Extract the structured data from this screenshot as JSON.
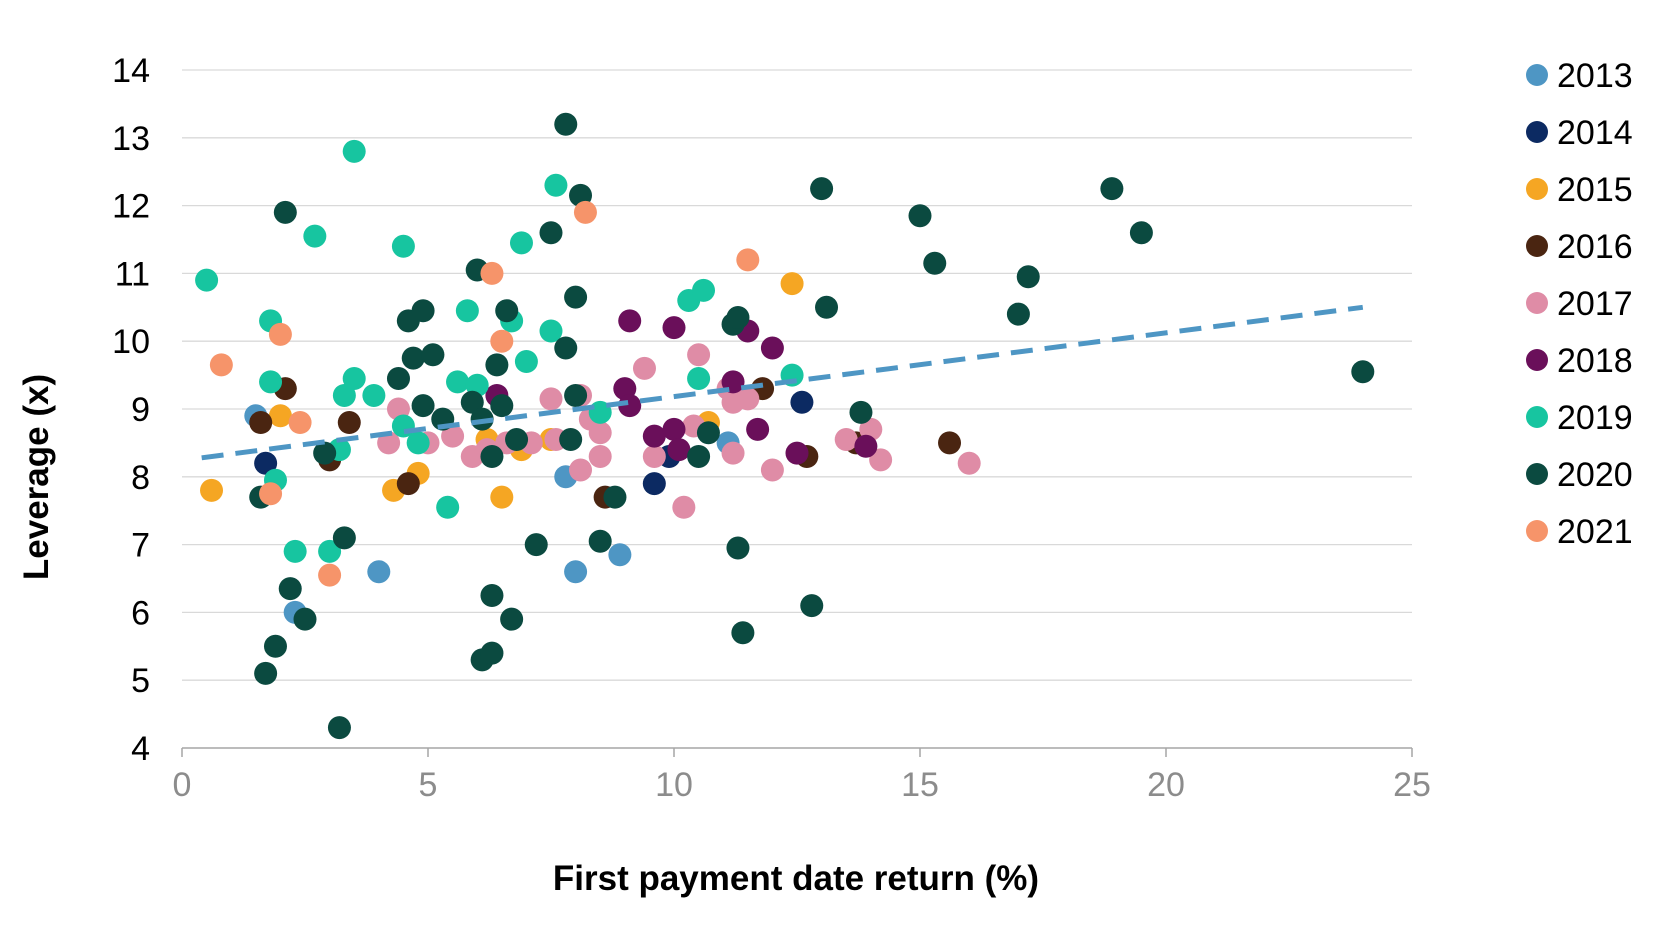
{
  "chart_data": {
    "type": "scatter",
    "xlabel": "First payment date return (%)",
    "ylabel": "Leverage (x)",
    "xlim": [
      0,
      25
    ],
    "ylim": [
      4,
      14
    ],
    "x_ticks": [
      "0",
      "5",
      "10",
      "15",
      "20",
      "25"
    ],
    "y_ticks": [
      "4",
      "5",
      "6",
      "7",
      "8",
      "9",
      "10",
      "11",
      "12",
      "13",
      "14"
    ],
    "grid": "horizontal",
    "legend_position": "right",
    "trendline": {
      "style": "dashed",
      "color": "#4e96c4",
      "x": [
        0.4,
        24.0
      ],
      "y": [
        8.28,
        10.5
      ]
    },
    "series": [
      {
        "name": "2013",
        "color": "#4e96c4",
        "points": [
          [
            1.5,
            8.9
          ],
          [
            2.3,
            6.0
          ],
          [
            4.0,
            6.6
          ],
          [
            7.8,
            8.0
          ],
          [
            8.0,
            6.6
          ],
          [
            8.9,
            6.85
          ],
          [
            11.1,
            8.5
          ]
        ]
      },
      {
        "name": "2014",
        "color": "#0c2a62",
        "points": [
          [
            1.7,
            8.2
          ],
          [
            9.6,
            7.9
          ],
          [
            9.9,
            8.3
          ],
          [
            12.6,
            9.1
          ]
        ]
      },
      {
        "name": "2015",
        "color": "#f5a623",
        "points": [
          [
            0.6,
            7.8
          ],
          [
            2.0,
            8.9
          ],
          [
            4.3,
            7.8
          ],
          [
            4.8,
            8.05
          ],
          [
            6.2,
            8.55
          ],
          [
            6.5,
            7.7
          ],
          [
            6.9,
            8.4
          ],
          [
            7.5,
            8.55
          ],
          [
            10.7,
            8.8
          ],
          [
            12.4,
            10.85
          ]
        ]
      },
      {
        "name": "2016",
        "color": "#4a2511",
        "points": [
          [
            1.6,
            8.8
          ],
          [
            2.1,
            9.3
          ],
          [
            3.0,
            8.25
          ],
          [
            3.4,
            8.8
          ],
          [
            4.6,
            7.9
          ],
          [
            8.6,
            7.7
          ],
          [
            11.8,
            9.3
          ],
          [
            12.7,
            8.3
          ],
          [
            13.7,
            8.5
          ],
          [
            15.6,
            8.5
          ]
        ]
      },
      {
        "name": "2017",
        "color": "#df8ca6",
        "points": [
          [
            4.2,
            8.5
          ],
          [
            4.4,
            9.0
          ],
          [
            5.0,
            8.5
          ],
          [
            5.5,
            8.6
          ],
          [
            5.9,
            8.3
          ],
          [
            6.2,
            8.4
          ],
          [
            6.6,
            8.5
          ],
          [
            7.1,
            8.5
          ],
          [
            7.5,
            9.15
          ],
          [
            7.6,
            8.55
          ],
          [
            8.1,
            9.2
          ],
          [
            8.1,
            8.1
          ],
          [
            8.3,
            8.85
          ],
          [
            8.5,
            8.65
          ],
          [
            8.5,
            8.3
          ],
          [
            9.4,
            9.6
          ],
          [
            9.6,
            8.3
          ],
          [
            10.2,
            7.55
          ],
          [
            10.4,
            8.75
          ],
          [
            10.5,
            9.8
          ],
          [
            11.1,
            9.3
          ],
          [
            11.2,
            9.1
          ],
          [
            11.2,
            8.35
          ],
          [
            11.5,
            9.15
          ],
          [
            12.0,
            8.1
          ],
          [
            13.5,
            8.55
          ],
          [
            14.0,
            8.7
          ],
          [
            14.2,
            8.25
          ],
          [
            16.0,
            8.2
          ]
        ]
      },
      {
        "name": "2018",
        "color": "#6a0f5a",
        "points": [
          [
            6.4,
            9.2
          ],
          [
            9.0,
            9.3
          ],
          [
            9.1,
            9.05
          ],
          [
            9.1,
            10.3
          ],
          [
            9.6,
            8.6
          ],
          [
            10.0,
            8.7
          ],
          [
            10.0,
            10.2
          ],
          [
            10.1,
            8.4
          ],
          [
            11.2,
            9.4
          ],
          [
            11.5,
            10.15
          ],
          [
            11.7,
            8.7
          ],
          [
            12.0,
            9.9
          ],
          [
            12.5,
            8.35
          ],
          [
            13.9,
            8.45
          ]
        ]
      },
      {
        "name": "2019",
        "color": "#17c5a0",
        "points": [
          [
            0.5,
            10.9
          ],
          [
            1.8,
            10.3
          ],
          [
            1.8,
            9.4
          ],
          [
            1.9,
            7.95
          ],
          [
            2.3,
            6.9
          ],
          [
            2.7,
            11.55
          ],
          [
            3.0,
            6.9
          ],
          [
            3.2,
            8.4
          ],
          [
            3.3,
            9.2
          ],
          [
            3.5,
            9.45
          ],
          [
            3.5,
            12.8
          ],
          [
            3.9,
            9.2
          ],
          [
            4.5,
            11.4
          ],
          [
            4.5,
            8.75
          ],
          [
            4.8,
            8.5
          ],
          [
            5.4,
            7.55
          ],
          [
            5.6,
            9.4
          ],
          [
            5.8,
            10.45
          ],
          [
            6.0,
            9.35
          ],
          [
            6.7,
            10.3
          ],
          [
            6.9,
            11.45
          ],
          [
            7.0,
            9.7
          ],
          [
            7.5,
            10.15
          ],
          [
            7.6,
            12.3
          ],
          [
            8.5,
            8.95
          ],
          [
            10.3,
            10.6
          ],
          [
            10.5,
            9.45
          ],
          [
            10.6,
            10.75
          ],
          [
            12.4,
            9.5
          ]
        ]
      },
      {
        "name": "2020",
        "color": "#0b4a40",
        "points": [
          [
            1.6,
            7.7
          ],
          [
            1.7,
            5.1
          ],
          [
            1.9,
            5.5
          ],
          [
            2.1,
            11.9
          ],
          [
            2.2,
            6.35
          ],
          [
            2.5,
            5.9
          ],
          [
            2.9,
            8.35
          ],
          [
            3.2,
            4.3
          ],
          [
            3.3,
            7.1
          ],
          [
            4.4,
            9.45
          ],
          [
            4.6,
            10.3
          ],
          [
            4.7,
            9.75
          ],
          [
            4.9,
            9.05
          ],
          [
            4.9,
            10.45
          ],
          [
            5.1,
            9.8
          ],
          [
            5.3,
            8.85
          ],
          [
            5.9,
            9.1
          ],
          [
            6.0,
            11.05
          ],
          [
            6.1,
            8.85
          ],
          [
            6.1,
            5.3
          ],
          [
            6.3,
            5.4
          ],
          [
            6.3,
            6.25
          ],
          [
            6.3,
            8.3
          ],
          [
            6.4,
            9.65
          ],
          [
            6.5,
            9.05
          ],
          [
            6.6,
            10.45
          ],
          [
            6.7,
            5.9
          ],
          [
            6.8,
            8.55
          ],
          [
            7.2,
            7.0
          ],
          [
            7.5,
            11.6
          ],
          [
            7.8,
            9.9
          ],
          [
            7.8,
            13.2
          ],
          [
            7.9,
            8.55
          ],
          [
            8.0,
            10.65
          ],
          [
            8.0,
            9.2
          ],
          [
            8.1,
            12.15
          ],
          [
            8.5,
            7.05
          ],
          [
            8.8,
            7.7
          ],
          [
            10.5,
            8.3
          ],
          [
            10.7,
            8.65
          ],
          [
            11.2,
            10.25
          ],
          [
            11.3,
            10.35
          ],
          [
            11.3,
            6.95
          ],
          [
            11.4,
            5.7
          ],
          [
            12.8,
            6.1
          ],
          [
            13.0,
            12.25
          ],
          [
            13.1,
            10.5
          ],
          [
            13.8,
            8.95
          ],
          [
            15.0,
            11.85
          ],
          [
            15.3,
            11.15
          ],
          [
            17.0,
            10.4
          ],
          [
            17.2,
            10.95
          ],
          [
            18.9,
            12.25
          ],
          [
            19.5,
            11.6
          ],
          [
            24.0,
            9.55
          ]
        ]
      },
      {
        "name": "2021",
        "color": "#f6946a",
        "points": [
          [
            0.8,
            9.65
          ],
          [
            1.8,
            7.75
          ],
          [
            2.0,
            10.1
          ],
          [
            2.4,
            8.8
          ],
          [
            3.0,
            6.55
          ],
          [
            6.3,
            11.0
          ],
          [
            6.5,
            10.0
          ],
          [
            8.2,
            11.9
          ],
          [
            11.5,
            11.2
          ]
        ]
      }
    ]
  }
}
